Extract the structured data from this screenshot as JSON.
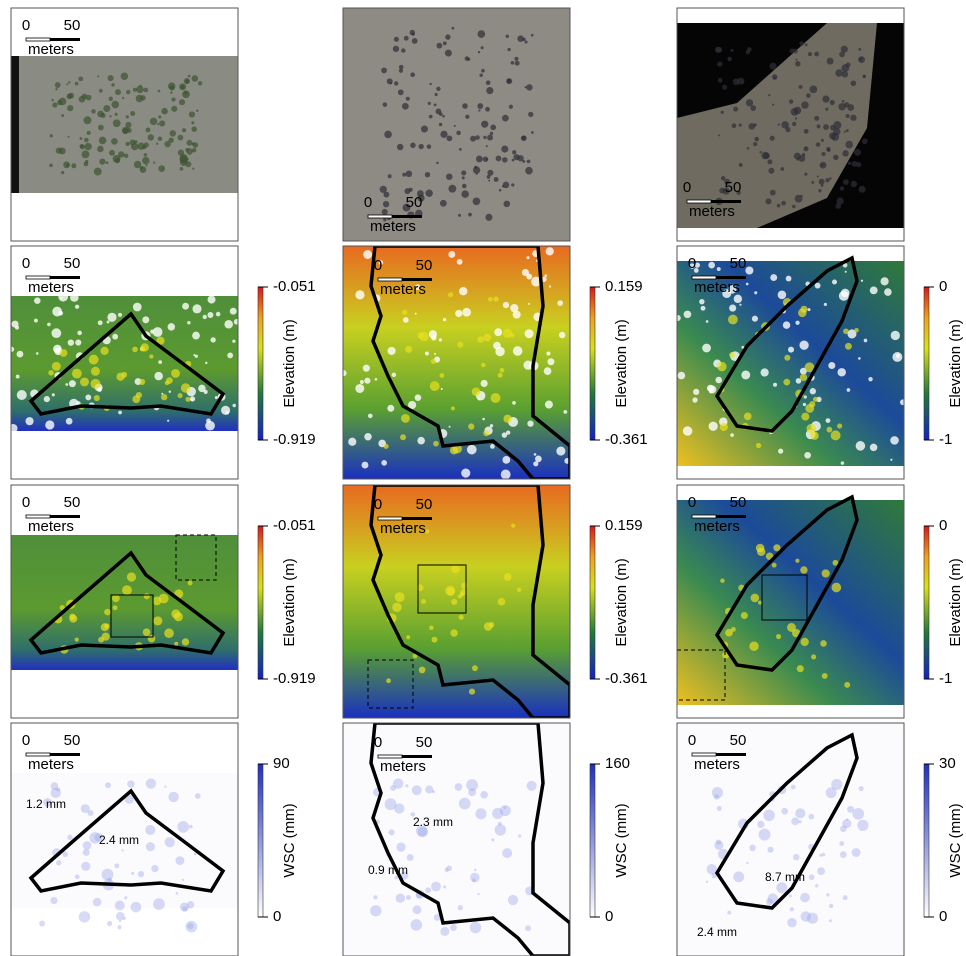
{
  "panels": [
    {
      "scale_bar": {
        "start": 0,
        "end": 50,
        "unit": "meters"
      }
    },
    {
      "scale_bar": {
        "start": 0,
        "end": 50,
        "unit": "meters"
      }
    },
    {
      "scale_bar": {
        "start": 0,
        "end": 50,
        "unit": "meters"
      }
    },
    {
      "scale_bar": {
        "start": 0,
        "end": 50,
        "unit": "meters"
      },
      "colorbar": {
        "max": -0.051,
        "min": -0.919,
        "label": "Elevation (m)"
      }
    },
    {
      "scale_bar": {
        "start": 0,
        "end": 50,
        "unit": "meters"
      },
      "colorbar": {
        "max": 0.159,
        "min": -0.361,
        "label": "Elevation (m)"
      }
    },
    {
      "scale_bar": {
        "start": 0,
        "end": 50,
        "unit": "meters"
      },
      "colorbar": {
        "max": 0,
        "min": -1,
        "label": "Elevation (m)"
      }
    },
    {
      "scale_bar": {
        "start": 0,
        "end": 50,
        "unit": "meters"
      },
      "colorbar": {
        "max": -0.051,
        "min": -0.919,
        "label": "Elevation (m)"
      }
    },
    {
      "scale_bar": {
        "start": 0,
        "end": 50,
        "unit": "meters"
      },
      "colorbar": {
        "max": 0.159,
        "min": -0.361,
        "label": "Elevation (m)"
      }
    },
    {
      "scale_bar": {
        "start": 0,
        "end": 50,
        "unit": "meters"
      },
      "colorbar": {
        "max": 0,
        "min": -1,
        "label": "Elevation (m)"
      }
    },
    {
      "scale_bar": {
        "start": 0,
        "end": 50,
        "unit": "meters"
      },
      "colorbar": {
        "max": 90,
        "min": 0,
        "label": "WSC (mm)"
      },
      "annotations": [
        "1.2 mm",
        "2.4 mm"
      ]
    },
    {
      "scale_bar": {
        "start": 0,
        "end": 50,
        "unit": "meters"
      },
      "colorbar": {
        "max": 160,
        "min": 0,
        "label": "WSC (mm)"
      },
      "annotations": [
        "2.3 mm",
        "0.9 mm"
      ]
    },
    {
      "scale_bar": {
        "start": 0,
        "end": 50,
        "unit": "meters"
      },
      "colorbar": {
        "max": 30,
        "min": 0,
        "label": "WSC (mm)"
      },
      "annotations": [
        "8.7 mm",
        "2.4 mm"
      ]
    }
  ]
}
